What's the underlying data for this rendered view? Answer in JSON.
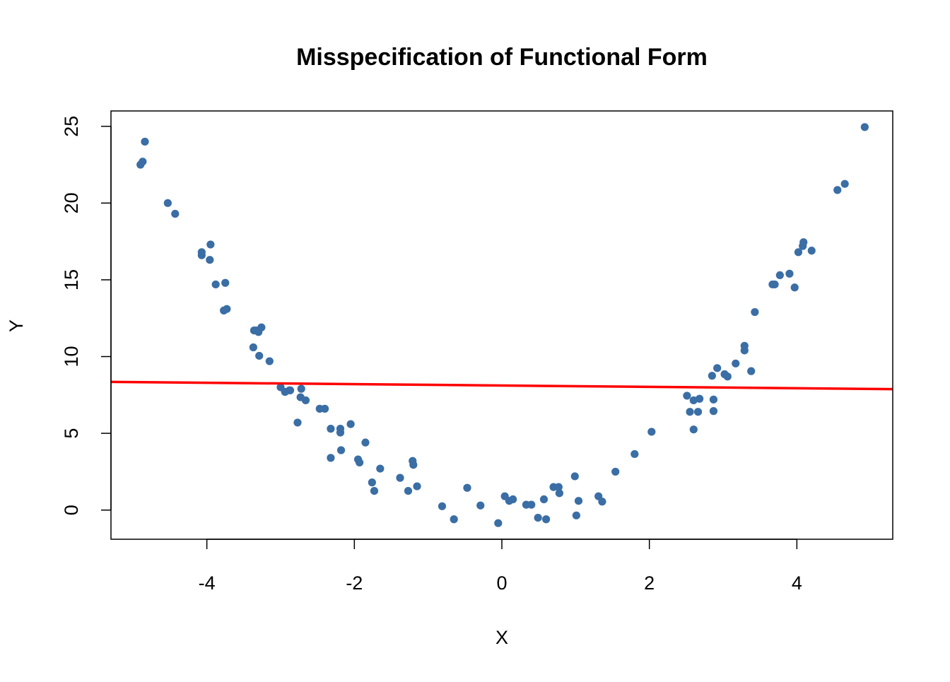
{
  "chart_data": {
    "type": "scatter",
    "title": "Misspecification of Functional Form",
    "xlabel": "X",
    "ylabel": "Y",
    "xlim": [
      -5.3,
      5.3
    ],
    "ylim": [
      -1.9,
      26.0
    ],
    "x_ticks": [
      -4,
      -2,
      0,
      2,
      4
    ],
    "x_tick_labels": [
      "-4",
      "-2",
      "0",
      "2",
      "4"
    ],
    "y_ticks": [
      0,
      5,
      10,
      15,
      20,
      25
    ],
    "y_tick_labels": [
      "0",
      "5",
      "10",
      "15",
      "20",
      "25"
    ],
    "grid": false,
    "points": {
      "color": "#3A6EA5",
      "x": [
        -4.9,
        -4.87,
        -4.84,
        -4.53,
        -4.43,
        -4.07,
        -4.07,
        -3.95,
        -3.96,
        -3.88,
        -3.77,
        -3.75,
        -3.73,
        -3.36,
        -3.33,
        -3.3,
        -3.29,
        -3.37,
        -3.26,
        -3.15,
        -2.88,
        -3.0,
        -2.94,
        -2.87,
        -2.72,
        -2.73,
        -2.66,
        -2.77,
        -2.47,
        -2.4,
        -2.32,
        -2.19,
        -2.19,
        -2.05,
        -2.32,
        -2.18,
        -1.85,
        -1.95,
        -1.93,
        -1.65,
        -1.76,
        -1.73,
        -1.38,
        -1.21,
        -1.2,
        -1.27,
        -1.15,
        -0.81,
        -0.65,
        -0.47,
        -0.29,
        -0.05,
        0.04,
        0.1,
        0.15,
        0.33,
        0.4,
        0.49,
        0.57,
        0.6,
        0.7,
        0.77,
        0.78,
        0.99,
        1.01,
        1.04,
        1.31,
        1.36,
        1.54,
        1.8,
        2.03,
        2.51,
        2.55,
        2.6,
        2.6,
        2.66,
        2.68,
        2.85,
        2.87,
        2.87,
        2.92,
        3.02,
        3.06,
        3.17,
        3.29,
        3.29,
        3.38,
        3.43,
        3.67,
        3.7,
        3.77,
        3.9,
        3.97,
        4.02,
        4.08,
        4.09,
        4.2,
        4.55,
        4.65,
        4.92
      ],
      "y": [
        22.5,
        22.7,
        24.0,
        20.0,
        19.3,
        16.8,
        16.6,
        17.3,
        16.3,
        14.7,
        13.0,
        14.8,
        13.1,
        11.7,
        11.7,
        11.6,
        10.05,
        10.6,
        11.9,
        9.7,
        7.8,
        8.0,
        7.7,
        7.8,
        7.9,
        7.35,
        7.15,
        5.7,
        6.6,
        6.6,
        5.3,
        5.3,
        5.05,
        5.6,
        3.4,
        3.9,
        4.4,
        3.3,
        3.1,
        2.7,
        1.8,
        1.25,
        2.1,
        3.2,
        2.95,
        1.25,
        1.55,
        0.25,
        -0.6,
        1.45,
        0.3,
        -0.85,
        0.9,
        0.6,
        0.7,
        0.35,
        0.35,
        -0.5,
        0.7,
        -0.6,
        1.5,
        1.5,
        1.1,
        2.2,
        -0.35,
        0.6,
        0.9,
        0.55,
        2.5,
        3.65,
        5.1,
        7.45,
        6.4,
        5.25,
        7.15,
        6.4,
        7.25,
        8.75,
        7.2,
        6.45,
        9.25,
        8.85,
        8.7,
        9.55,
        10.7,
        10.4,
        9.05,
        12.9,
        14.7,
        14.7,
        15.3,
        15.4,
        14.5,
        16.8,
        17.2,
        17.45,
        16.9,
        20.85,
        21.25,
        24.95
      ]
    },
    "fit_line": {
      "color": "#FF0000",
      "x": [
        -5.3,
        5.3
      ],
      "y": [
        8.35,
        7.88
      ]
    }
  }
}
